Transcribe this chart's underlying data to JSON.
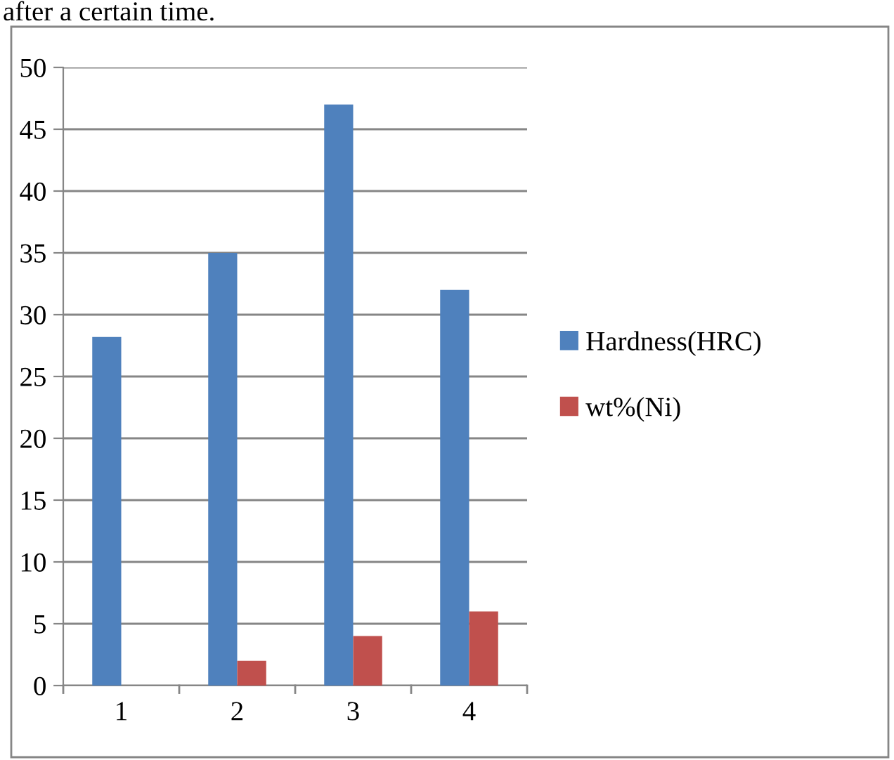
{
  "chart_data": {
    "type": "bar",
    "categories": [
      "1",
      "2",
      "3",
      "4"
    ],
    "series": [
      {
        "name": "Hardness(HRC)",
        "color": "#4f81bd",
        "values": [
          28.2,
          35,
          47,
          32
        ]
      },
      {
        "name": "wt%(Ni)",
        "color": "#c0504d",
        "values": [
          0,
          2,
          4,
          6
        ]
      }
    ],
    "ylim": [
      0,
      50
    ],
    "yticks": [
      0,
      5,
      10,
      15,
      20,
      25,
      30,
      35,
      40,
      45,
      50
    ],
    "grid": "y",
    "legend": "right",
    "annotations": [
      "after a certain time."
    ]
  }
}
